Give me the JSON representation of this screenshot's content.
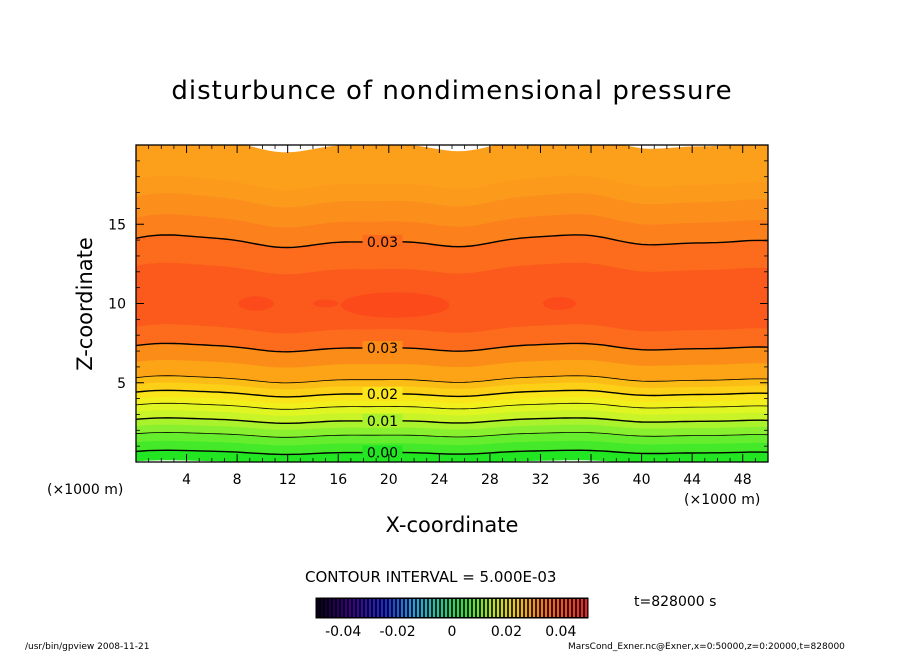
{
  "chart_data": {
    "type": "heatmap",
    "title": "disturbunce of nondimensional pressure",
    "xlabel": "X-coordinate",
    "ylabel": "Z-coordinate",
    "x_unit": "(×1000 m)",
    "xlim": [
      0,
      50
    ],
    "ylim": [
      0,
      20
    ],
    "x_ticks": [
      4,
      8,
      12,
      16,
      20,
      24,
      28,
      32,
      36,
      40,
      44,
      48
    ],
    "y_ticks": [
      5,
      10,
      15
    ],
    "contour_interval_text": "CONTOUR INTERVAL = 5.000E-03",
    "time_text": "t=828000 s",
    "colorbar": {
      "range": [
        -0.05,
        0.05
      ],
      "tick_labels": [
        "-0.04",
        "-0.02",
        "0",
        "0.02",
        "0.04"
      ],
      "tick_values": [
        -0.04,
        -0.02,
        0,
        0.02,
        0.04
      ]
    },
    "contours": [
      {
        "level": 0.0,
        "z": 0.6,
        "labeled": true,
        "label": "0.00"
      },
      {
        "level": 0.005,
        "z": 1.7,
        "labeled": false
      },
      {
        "level": 0.01,
        "z": 2.6,
        "labeled": true,
        "label": "0.01"
      },
      {
        "level": 0.015,
        "z": 3.5,
        "labeled": false
      },
      {
        "level": 0.02,
        "z": 4.3,
        "labeled": true,
        "label": "0.02"
      },
      {
        "level": 0.025,
        "z": 5.2,
        "labeled": false
      },
      {
        "level": 0.03,
        "z": 7.2,
        "labeled": true,
        "label": "0.03"
      },
      {
        "level": 0.03,
        "z": 13.9,
        "labeled": true,
        "label": "0.03"
      }
    ],
    "filled_bands": [
      {
        "z_min": 0,
        "z_max": 0.6,
        "color": "#22e622"
      },
      {
        "z_min": 0.6,
        "z_max": 1.2,
        "color": "#44ea2a"
      },
      {
        "z_min": 1.2,
        "z_max": 1.7,
        "color": "#66ee2e"
      },
      {
        "z_min": 1.7,
        "z_max": 2.2,
        "color": "#88f02e"
      },
      {
        "z_min": 2.2,
        "z_max": 2.6,
        "color": "#aaf22c"
      },
      {
        "z_min": 2.6,
        "z_max": 3.1,
        "color": "#c8f428"
      },
      {
        "z_min": 3.1,
        "z_max": 3.5,
        "color": "#e0f622"
      },
      {
        "z_min": 3.5,
        "z_max": 3.9,
        "color": "#f2f01c"
      },
      {
        "z_min": 3.9,
        "z_max": 4.3,
        "color": "#fae41a"
      },
      {
        "z_min": 4.3,
        "z_max": 4.8,
        "color": "#fcd016"
      },
      {
        "z_min": 4.8,
        "z_max": 5.2,
        "color": "#fcbc16"
      },
      {
        "z_min": 5.2,
        "z_max": 6.2,
        "color": "#fca416"
      },
      {
        "z_min": 6.2,
        "z_max": 7.2,
        "color": "#fc8c18"
      },
      {
        "z_min": 7.2,
        "z_max": 8.4,
        "color": "#fc6c1c"
      },
      {
        "z_min": 8.4,
        "z_max": 12.2,
        "color": "#fc5a1c"
      },
      {
        "z_min": 12.2,
        "z_max": 13.9,
        "color": "#fc6c1c"
      },
      {
        "z_min": 13.9,
        "z_max": 15.2,
        "color": "#fc801c"
      },
      {
        "z_min": 15.2,
        "z_max": 16.5,
        "color": "#fc8e1c"
      },
      {
        "z_min": 16.5,
        "z_max": 17.6,
        "color": "#fc9a1c"
      },
      {
        "z_min": 17.6,
        "z_max": 20,
        "color": "#fca01c"
      }
    ],
    "blobs": [
      {
        "x": 9.5,
        "z": 10.0,
        "rx": 1.4,
        "rz": 0.45,
        "color": "#fc4a1a"
      },
      {
        "x": 20.5,
        "z": 9.9,
        "rx": 4.3,
        "rz": 0.8,
        "color": "#fc4a1a"
      },
      {
        "x": 15.0,
        "z": 10.0,
        "rx": 1.0,
        "rz": 0.25,
        "color": "#fc4a1a"
      },
      {
        "x": 33.5,
        "z": 10.0,
        "rx": 1.3,
        "rz": 0.4,
        "color": "#fc4a1a"
      }
    ]
  },
  "footer": {
    "left": "/usr/bin/gpview   2008-11-21",
    "right": "MarsCond_Exner.nc@Exner,x=0:50000,z=0:20000,t=828000"
  }
}
